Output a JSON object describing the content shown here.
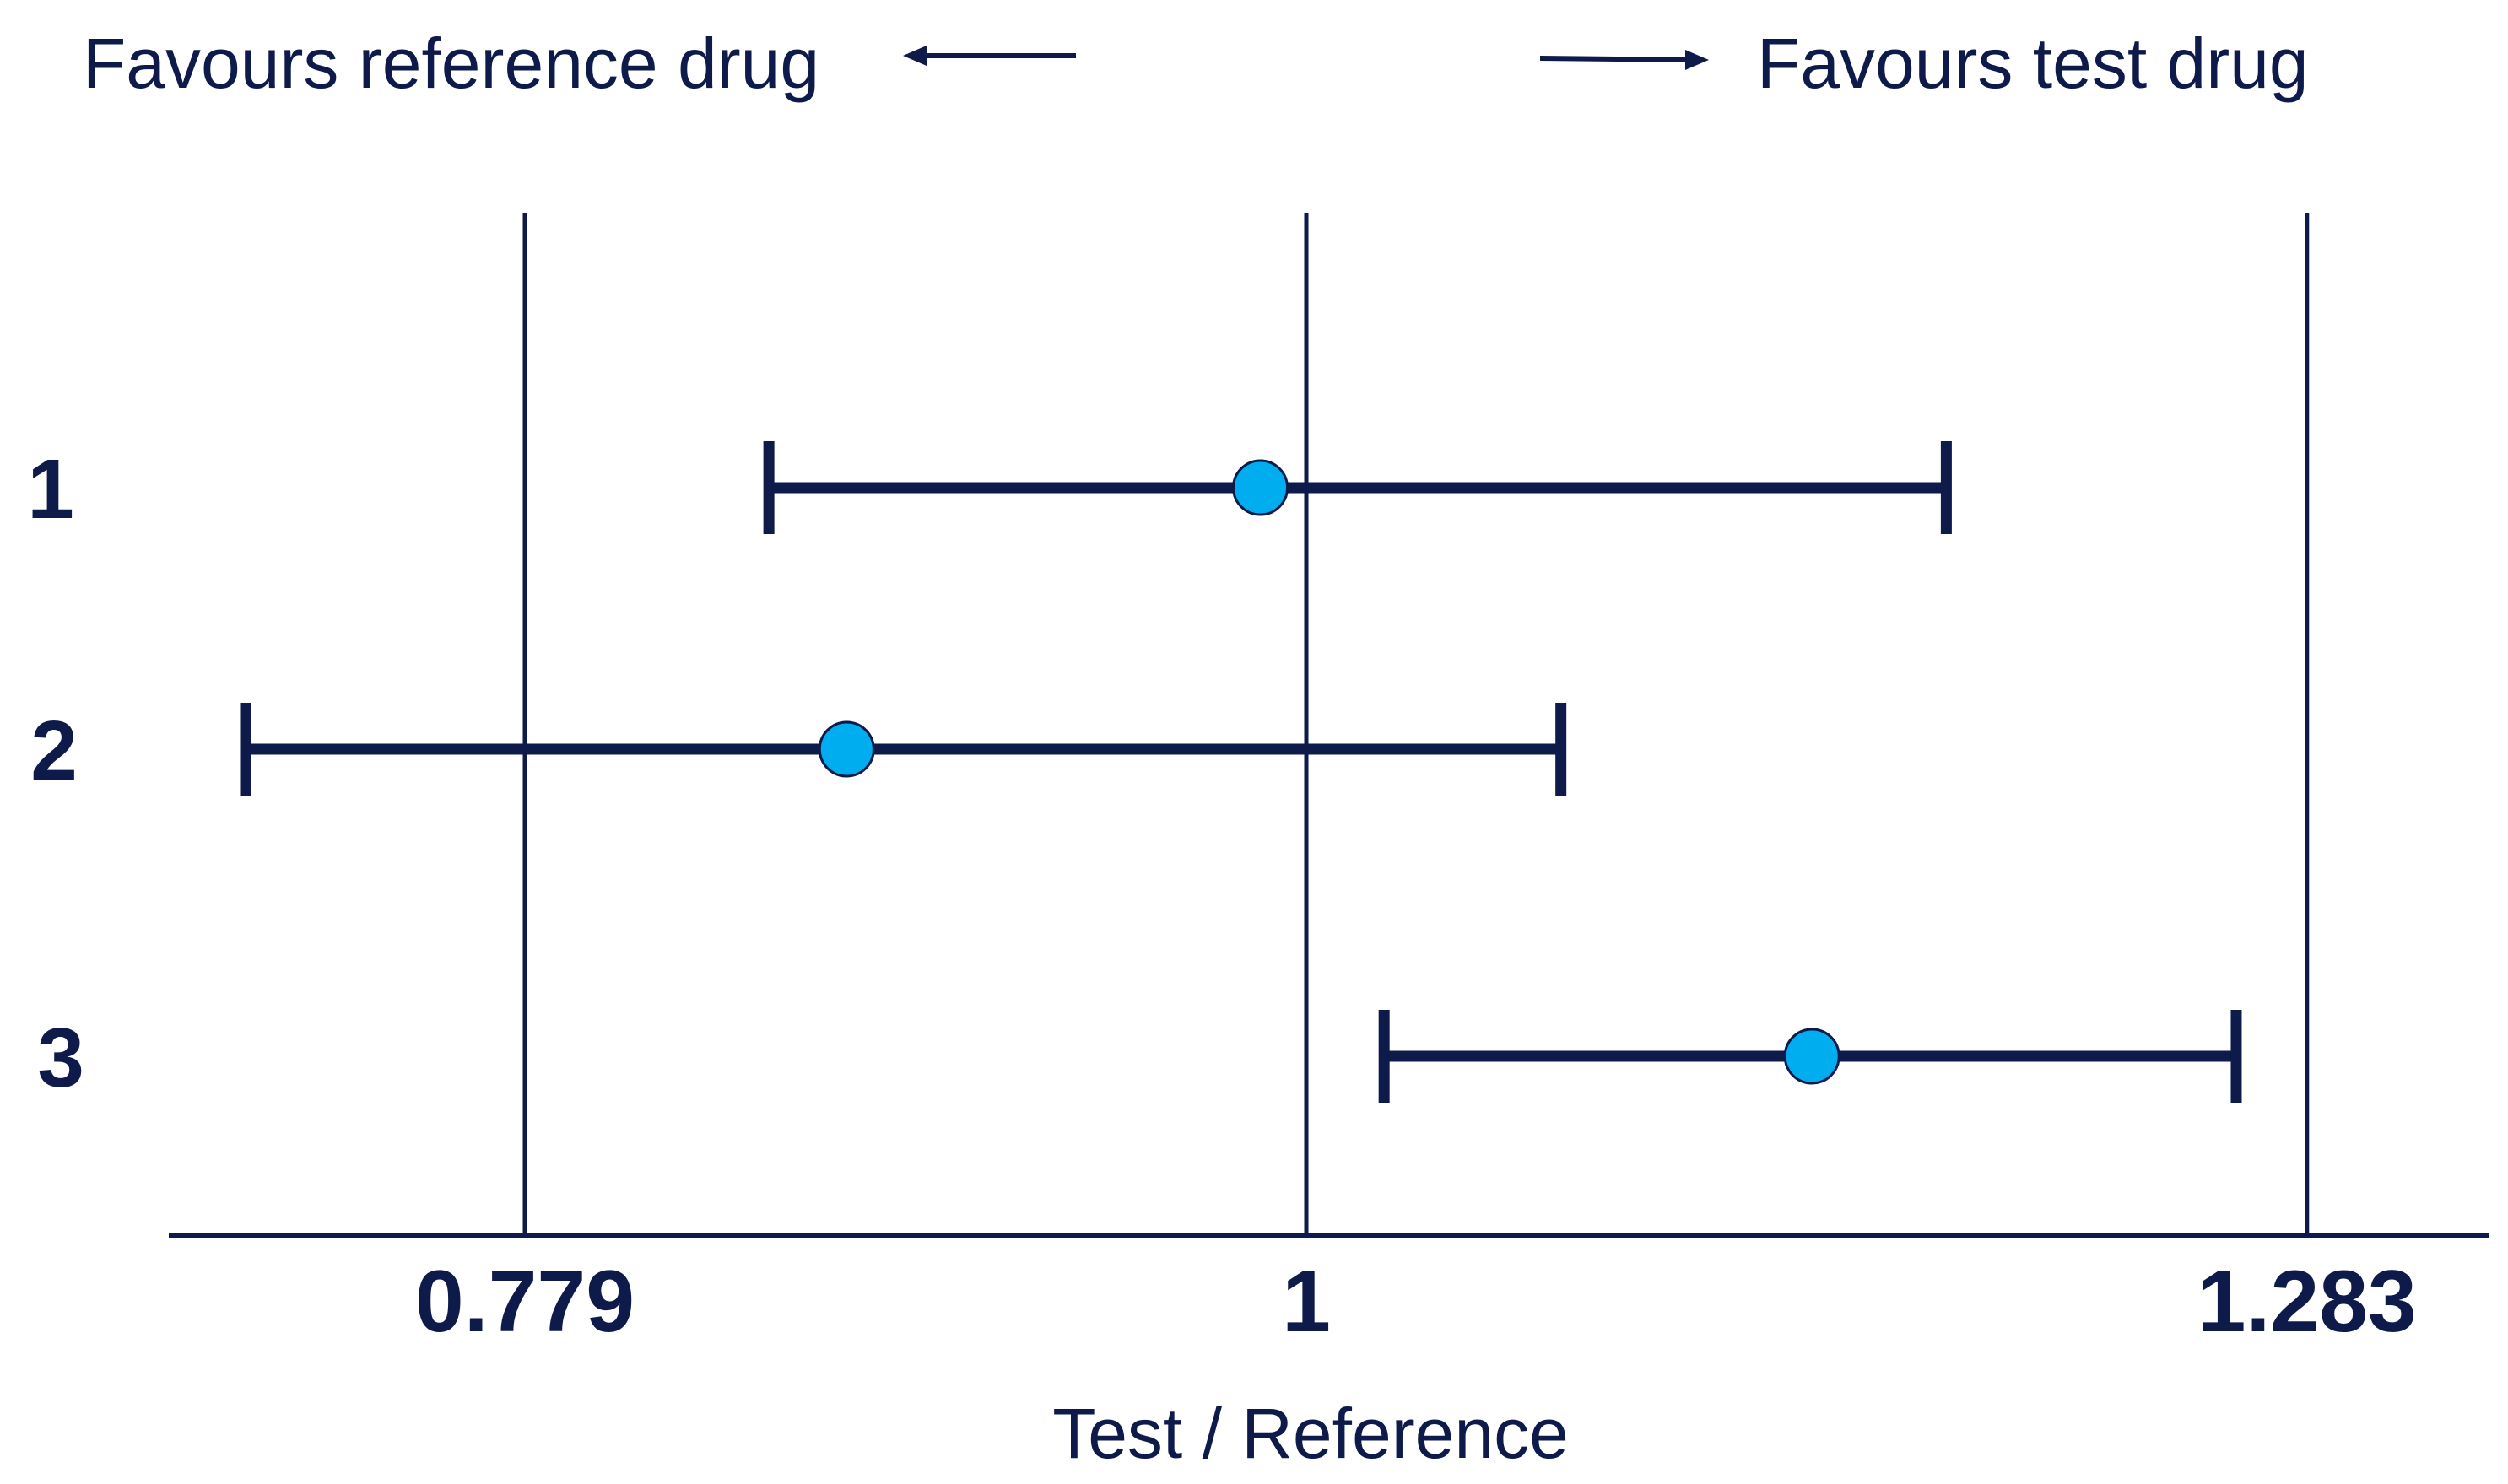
{
  "colors": {
    "ink": "#0d1a4a",
    "point_fill": "#00aeef"
  },
  "header": {
    "left_label": "Favours reference drug",
    "right_label": "Favours test drug",
    "left_arrow_icon": "arrow-left-icon",
    "right_arrow_icon": "arrow-right-icon"
  },
  "chart_data": {
    "type": "forest",
    "xlabel": "Test / Reference",
    "xticks": [
      {
        "value": 0.779,
        "label": "0.779"
      },
      {
        "value": 1,
        "label": "1"
      },
      {
        "value": 1.283,
        "label": "1.283"
      }
    ],
    "xlim": [
      0.65,
      1.49
    ],
    "reference_lines": [
      0.779,
      1,
      1.283
    ],
    "rows": [
      {
        "label": "1",
        "estimate": 0.987,
        "lower": 0.848,
        "upper": 1.181
      },
      {
        "label": "2",
        "estimate": 0.87,
        "lower": 0.7,
        "upper": 1.072
      },
      {
        "label": "3",
        "estimate": 1.143,
        "lower": 1.022,
        "upper": 1.263
      }
    ]
  }
}
